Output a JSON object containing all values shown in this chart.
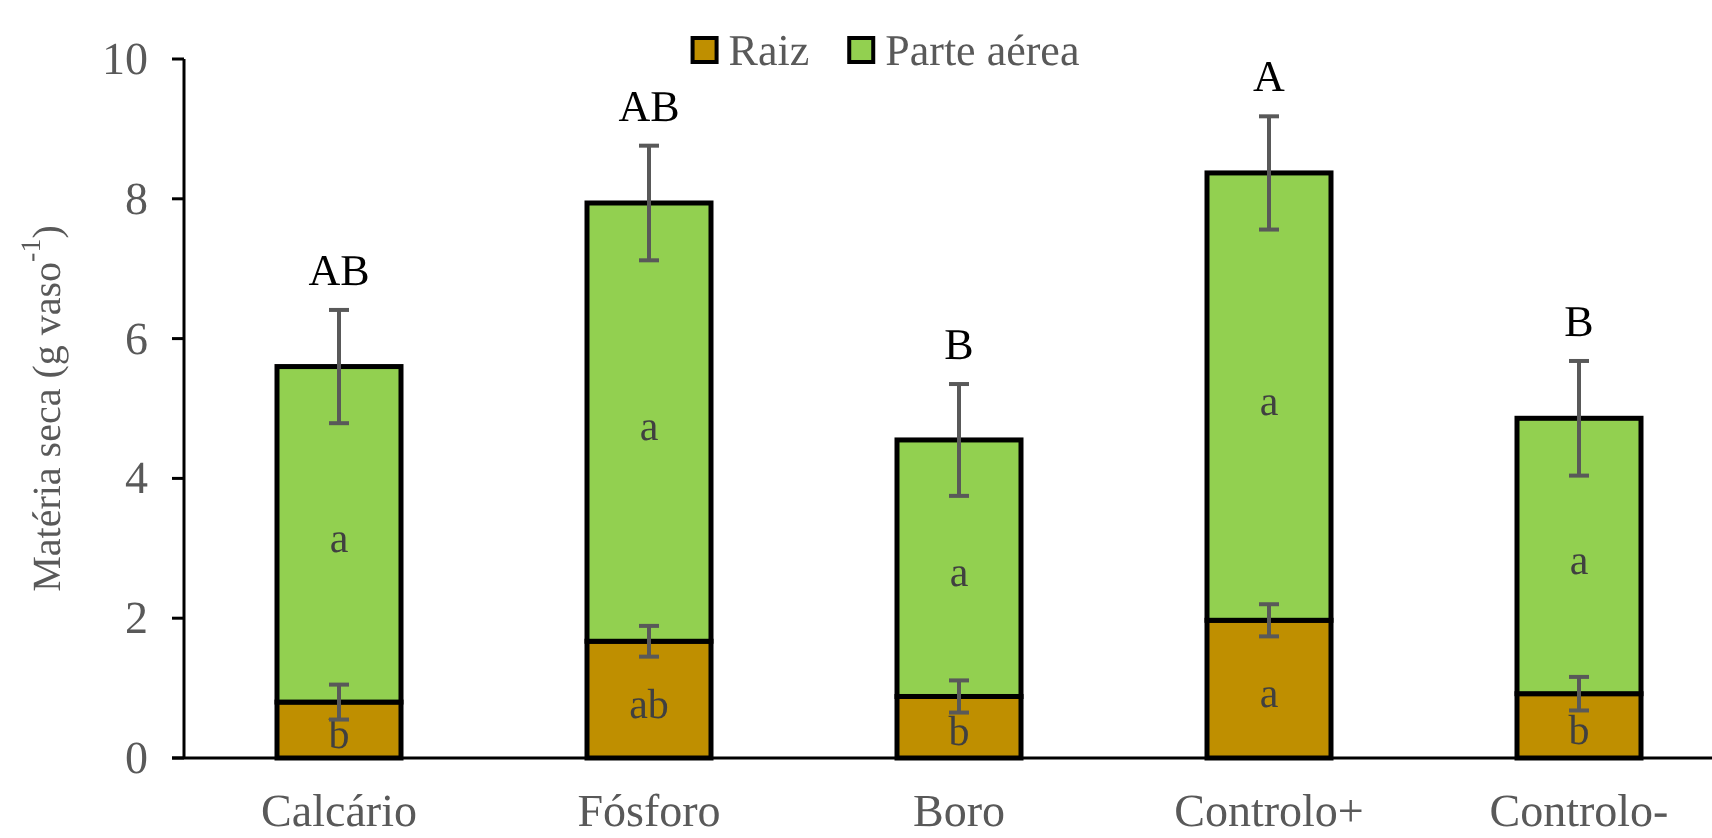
{
  "chart_data": {
    "type": "bar",
    "stacked": true,
    "ylabel": "Matéria seca (g vaso$^{-1}$)",
    "categories": [
      "Calcário",
      "Fósforo",
      "Boro",
      "Controlo+",
      "Controlo-"
    ],
    "series": [
      {
        "name": "Raiz",
        "color": "#bf8f00",
        "values": [
          0.8,
          1.67,
          0.88,
          1.97,
          0.92
        ],
        "errors": [
          0.25,
          0.22,
          0.23,
          0.23,
          0.24
        ],
        "value_labels": [
          "b",
          "ab",
          "b",
          "a",
          "b"
        ]
      },
      {
        "name": "Parte aérea",
        "color": "#92d050",
        "values": [
          4.8,
          6.27,
          3.67,
          6.4,
          3.94
        ],
        "errors": [
          0.81,
          0.82,
          0.8,
          0.81,
          0.82
        ],
        "value_labels": [
          "a",
          "a",
          "a",
          "a",
          "a"
        ]
      }
    ],
    "ylim": [
      0,
      10
    ],
    "yticks": [
      0,
      2,
      4,
      6,
      8,
      10
    ],
    "legend": "top",
    "annotations": [
      "AB",
      "AB",
      "B",
      "A",
      "B"
    ]
  }
}
